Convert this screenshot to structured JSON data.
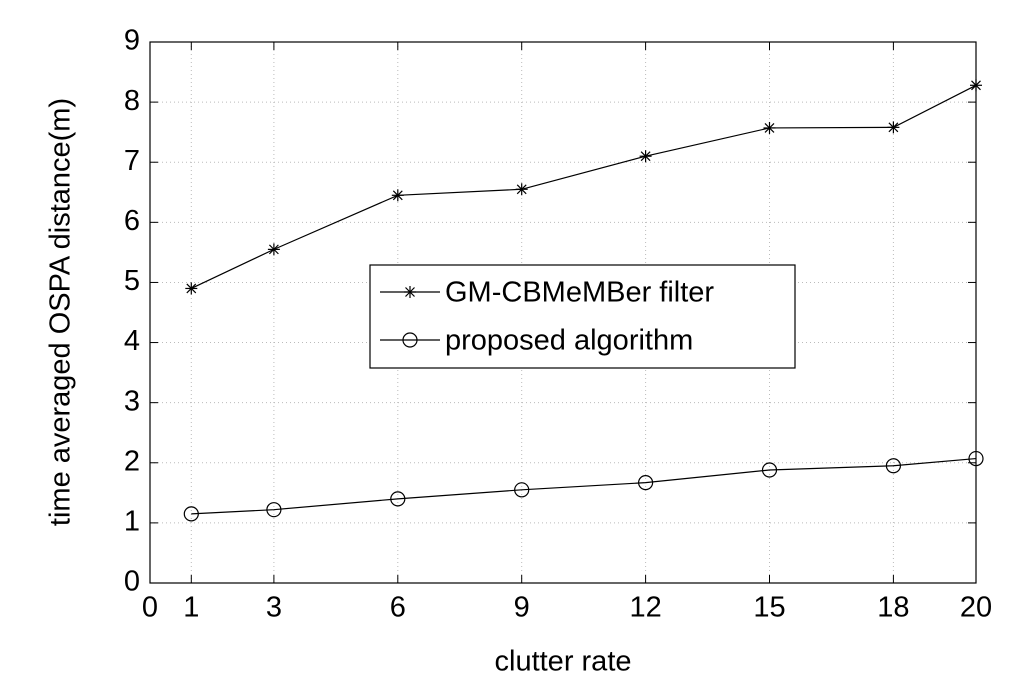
{
  "chart_data": {
    "type": "line",
    "xlabel": "clutter rate",
    "ylabel": "time averaged OSPA distance(m)",
    "x": [
      1,
      3,
      6,
      9,
      12,
      15,
      18,
      20
    ],
    "series": [
      {
        "name": "GM-CBMeMBer filter",
        "color": "#000000",
        "marker": "asterisk",
        "values": [
          4.9,
          5.55,
          6.45,
          6.55,
          7.1,
          7.57,
          7.58,
          8.28
        ]
      },
      {
        "name": "proposed algorithm",
        "color": "#000000",
        "marker": "circle",
        "values": [
          1.15,
          1.22,
          1.4,
          1.55,
          1.67,
          1.88,
          1.95,
          2.07
        ]
      }
    ],
    "xlim": [
      0,
      20
    ],
    "xticks": [
      0,
      1,
      3,
      6,
      9,
      12,
      15,
      18,
      20
    ],
    "ylim": [
      0,
      9
    ],
    "yticks": [
      0,
      1,
      2,
      3,
      4,
      5,
      6,
      7,
      8,
      9
    ],
    "grid": true,
    "legend": "center"
  }
}
